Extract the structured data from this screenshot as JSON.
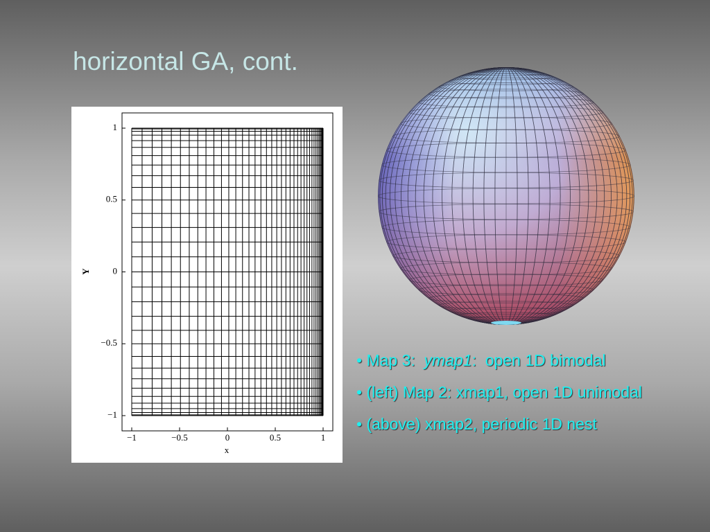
{
  "header": {
    "title": "horizontal GA, cont."
  },
  "plot": {
    "xlabel": "x",
    "ylabel": "Y",
    "xticks": [
      "−1",
      "−0.5",
      "0",
      "0.5",
      "1"
    ],
    "yticks": [
      "1",
      "0.5",
      "0",
      "−0.5",
      "−1"
    ]
  },
  "bullets": [
    {
      "parts": [
        "• Map 3:  ",
        "ymap1",
        ":  open 1D bimodal"
      ]
    },
    {
      "parts": [
        "• (left) Map 2: xmap1, open 1D unimodal"
      ]
    },
    {
      "parts": [
        "• (above) xmap2, periodic 1D nest"
      ]
    }
  ]
}
